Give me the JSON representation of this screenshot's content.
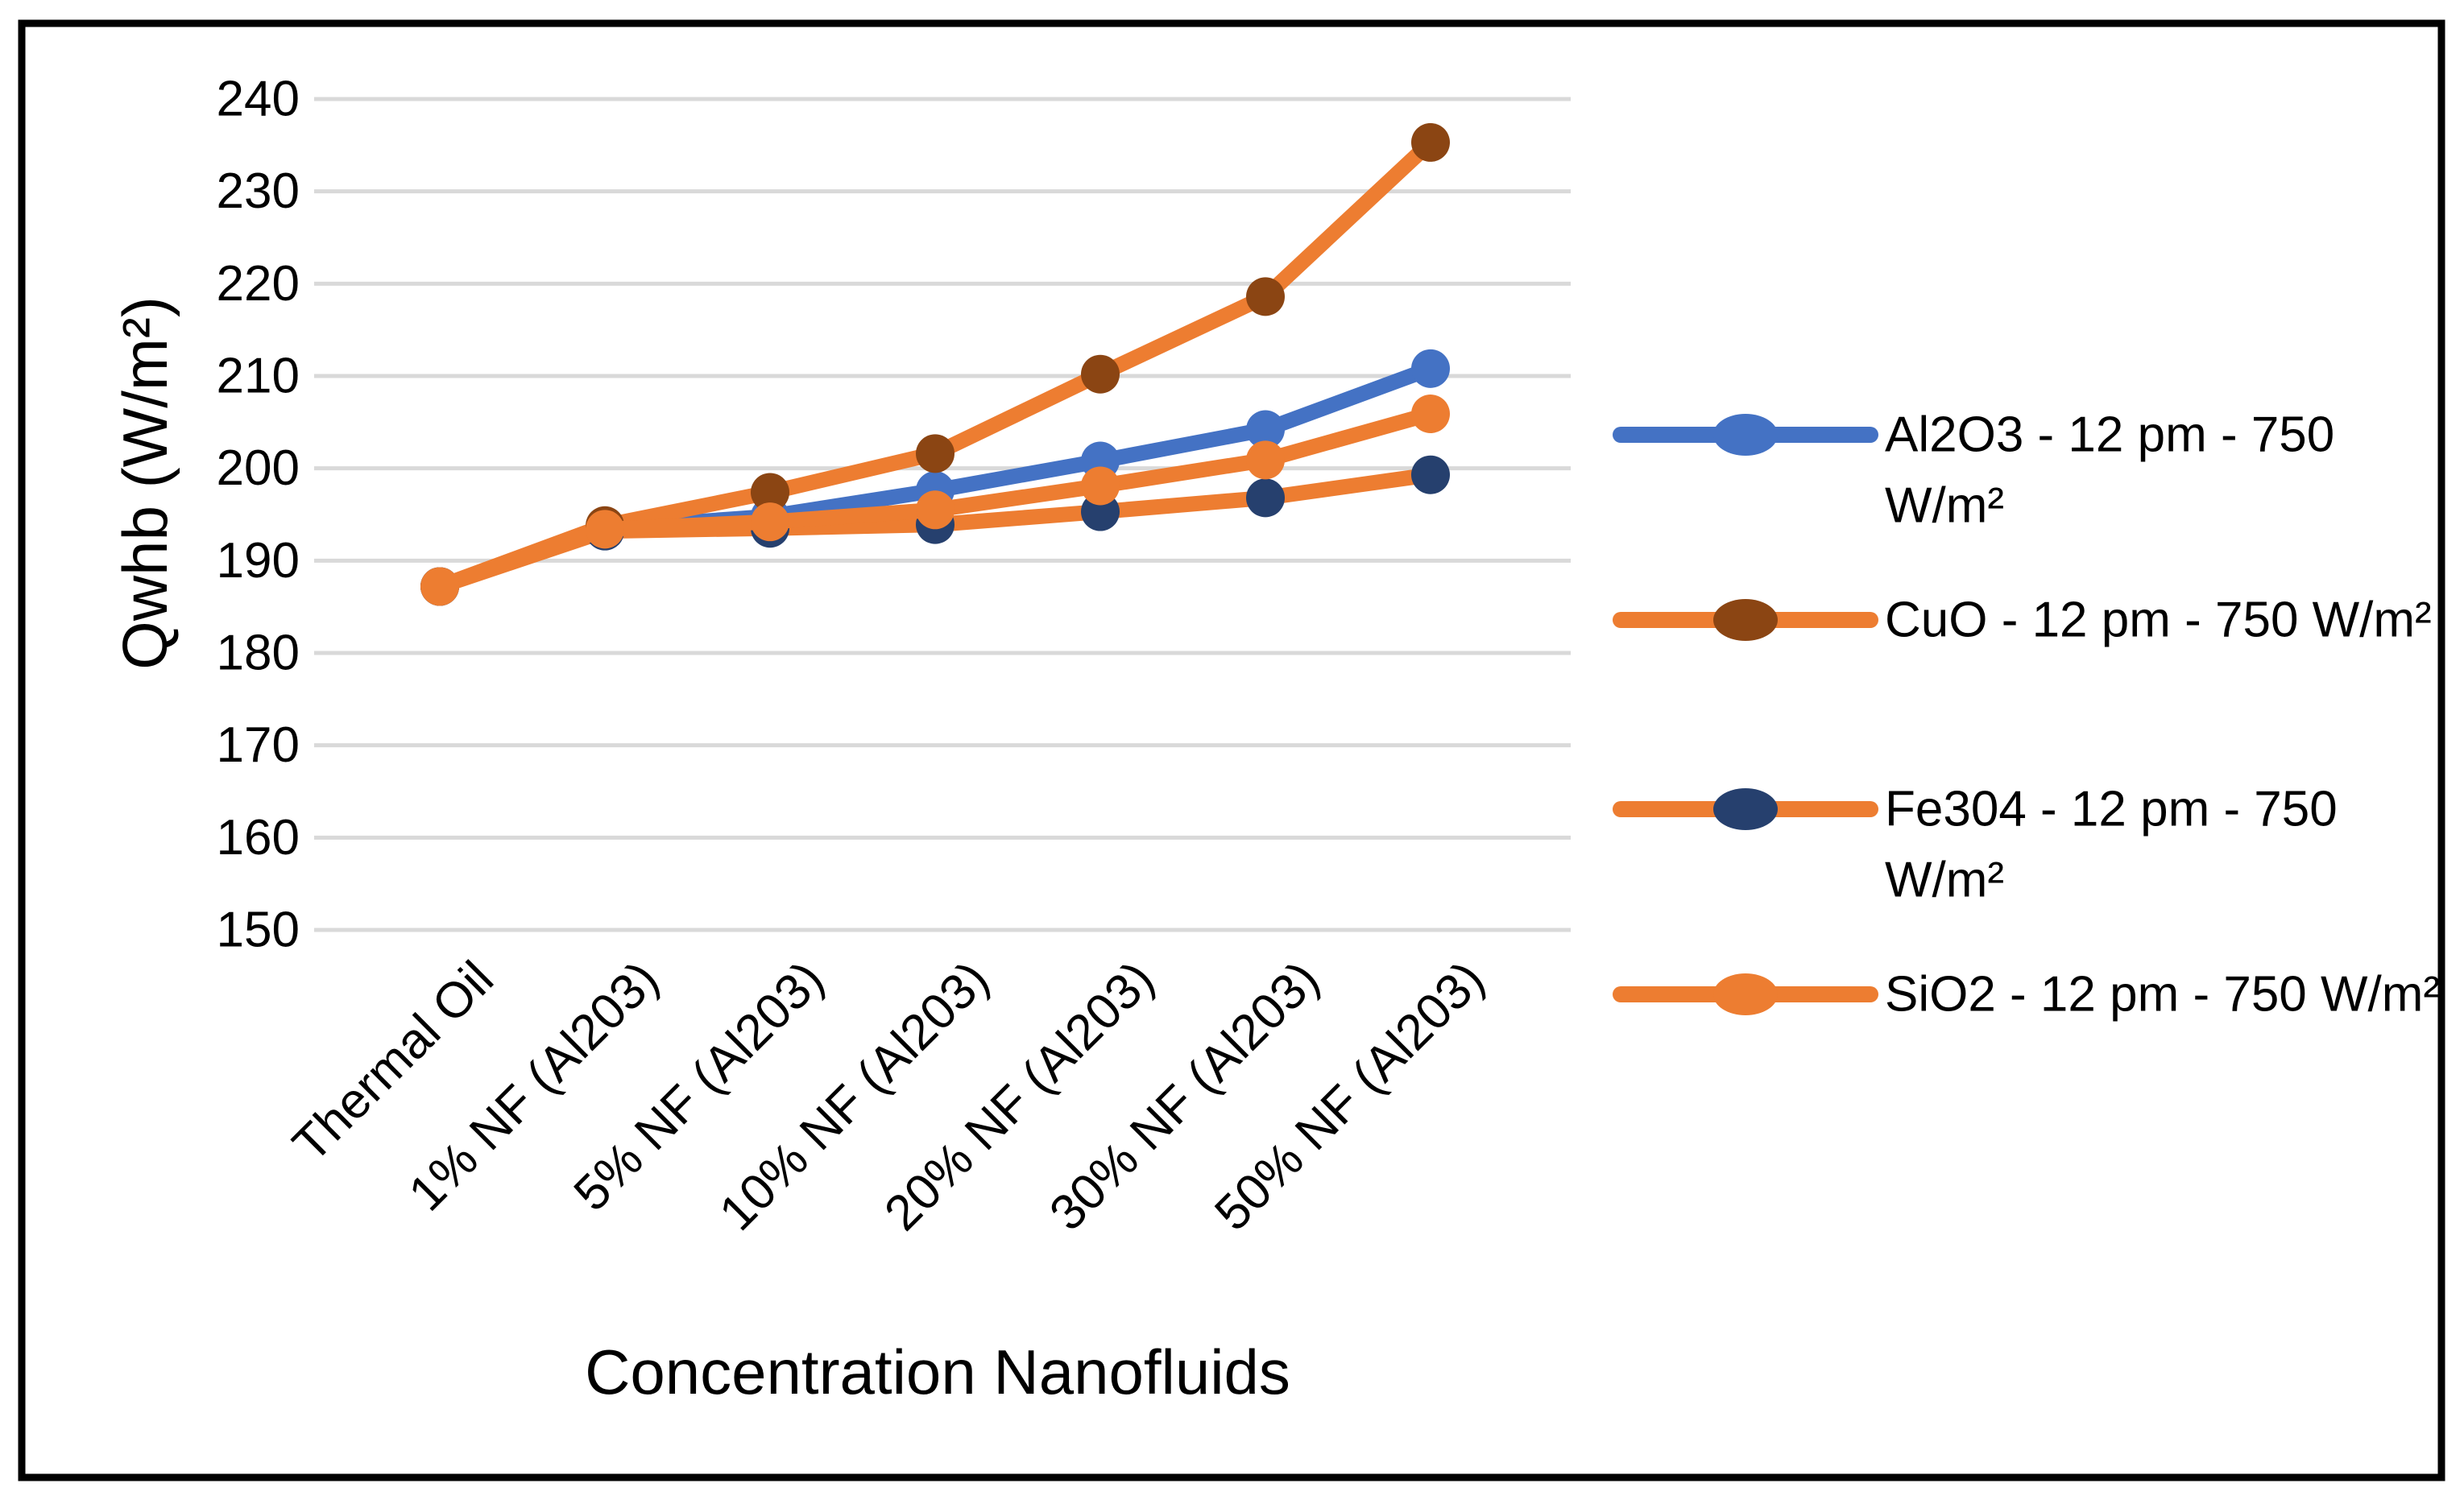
{
  "figure": {
    "background": "#FFFFFF",
    "border_color": "#000000"
  },
  "chart_data": {
    "type": "line",
    "title": "",
    "xlabel": "Concentration Nanofluids",
    "ylabel": "Qwhb (W/m²)",
    "categories": [
      "Thermal Oil",
      "1% NF (Al203)",
      "5% NF (Al203)",
      "10% NF (Al203)",
      "20% NF (Al203)",
      "30% NF (Al203)",
      "50% NF (Al203)"
    ],
    "series": [
      {
        "id": "al2o3",
        "name": "Al2O3 - 12 pm - 750 W/m²",
        "legend_lines": [
          "Al2O3 - 12 pm - 750",
          "W/m²"
        ],
        "line_color": "#4472C4",
        "marker_color": "#4472C4",
        "values": [
          187.2,
          193.5,
          194.8,
          197.6,
          200.8,
          204.2,
          210.8
        ]
      },
      {
        "id": "cuo",
        "name": "CuO - 12 pm - 750 W/m²",
        "legend_lines": [
          "CuO - 12 pm - 750 W/m²"
        ],
        "line_color": "#ED7D31",
        "marker_color": "#8B4513",
        "values": [
          187.2,
          193.8,
          197.4,
          201.6,
          210.2,
          218.6,
          235.3
        ]
      },
      {
        "id": "fe3o4",
        "name": "Fe304 - 12 pm - 750 W/m²",
        "legend_lines": [
          "Fe304 - 12 pm - 750",
          "W/m²"
        ],
        "line_color": "#ED7D31",
        "marker_color": "#26406E",
        "values": [
          187.2,
          193.2,
          193.5,
          193.9,
          195.3,
          196.8,
          199.3
        ]
      },
      {
        "id": "sio2",
        "name": "SiO2 - 12 pm - 750 W/m²",
        "legend_lines": [
          "SiO2 - 12 pm - 750 W/m²"
        ],
        "line_color": "#ED7D31",
        "marker_color": "#ED7D31",
        "values": [
          187.2,
          193.4,
          194.2,
          195.5,
          198.1,
          200.9,
          205.9
        ]
      }
    ],
    "ylim": [
      150,
      240
    ],
    "ytick_step": 10,
    "grid": true,
    "gridline_color": "#D9D9D9",
    "text_color": "#000000",
    "legend_position": "right"
  }
}
